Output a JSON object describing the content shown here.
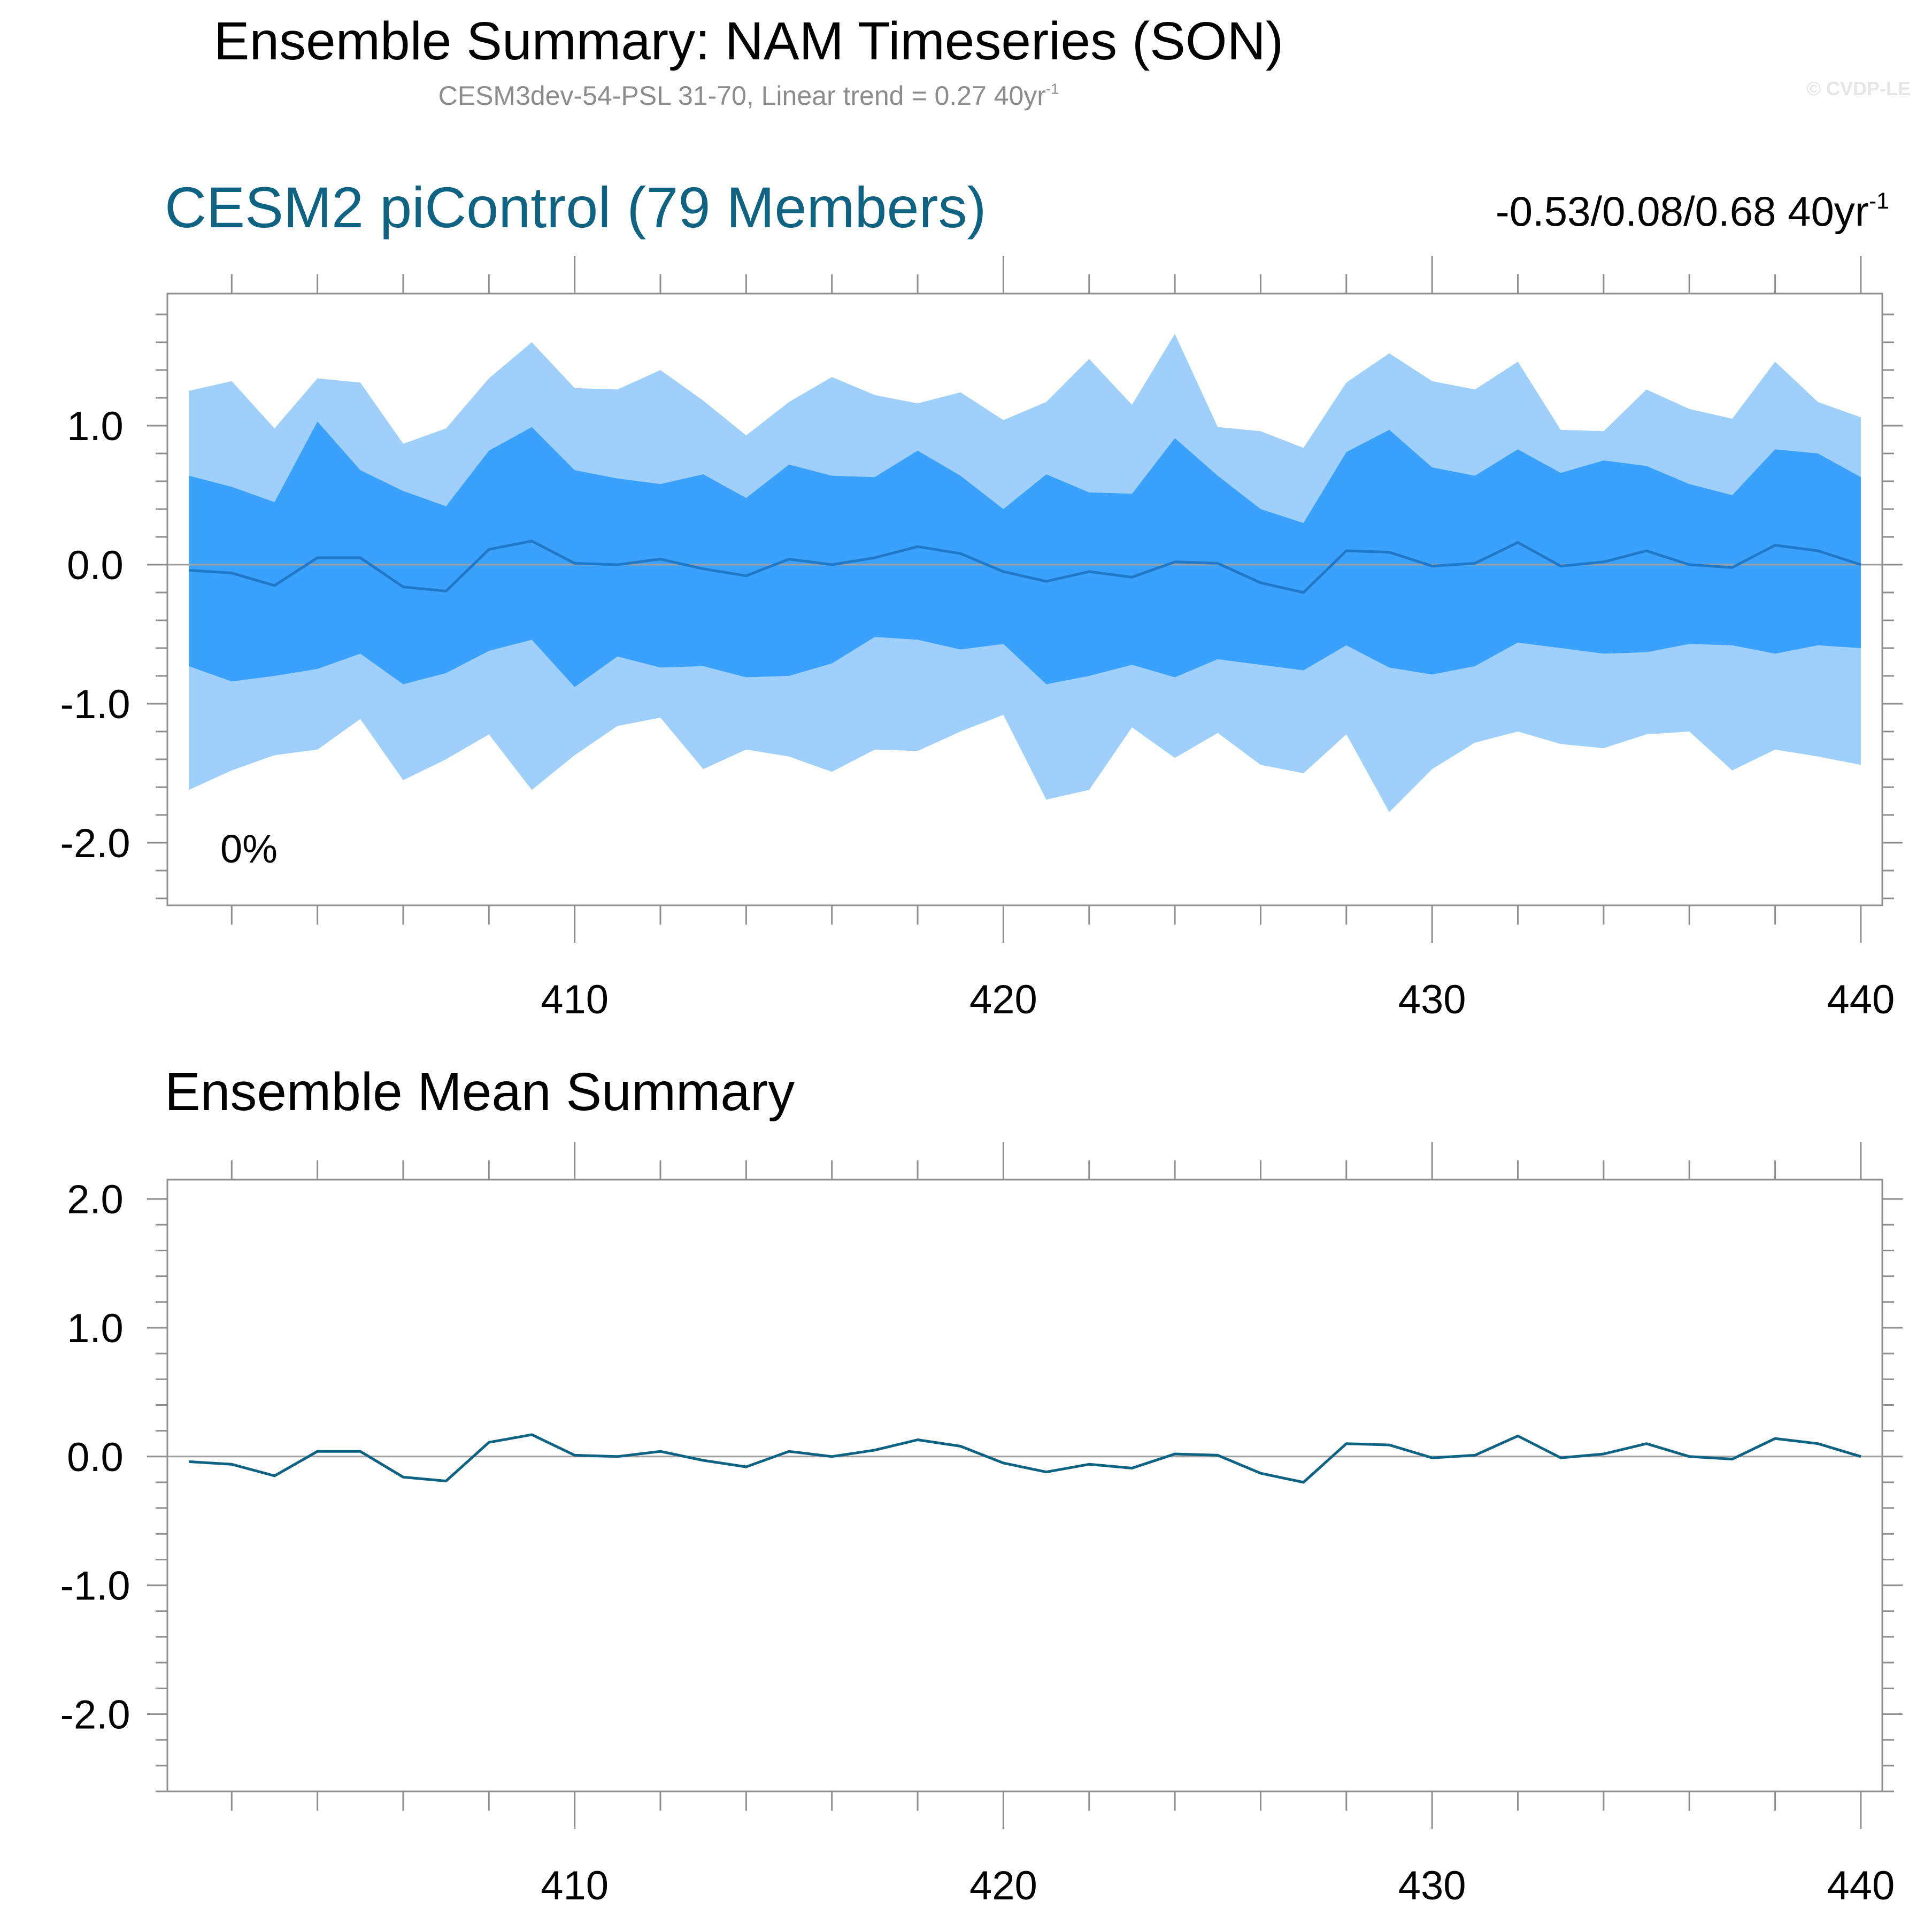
{
  "title": "Ensemble Summary: NAM Timeseries (SON)",
  "subtitle": {
    "text": "CESM3dev-54-PSL 31-70, Linear trend = 0.27 40yr",
    "superscript": "-1"
  },
  "credit": "© CVDP-LE",
  "colors": {
    "band_outer": "#9fd0fc",
    "band_inner": "#3aa2fc",
    "median_line": "#1f78c8",
    "mean_line": "#0e6383",
    "zero_line": "#a0a0a0",
    "axis": "#8f8f8f",
    "title_blue": "#0e6383"
  },
  "chart_data": [
    {
      "type": "area",
      "title": "CESM2 piControl (79 Members)",
      "right_label": {
        "text": "-0.53/0.08/0.68 40yr",
        "superscript": "-1"
      },
      "annotation": "0%",
      "ylim": [
        -2.45,
        1.95
      ],
      "xlim": [
        400.5,
        440.5
      ],
      "yticks": [
        -2.0,
        -1.0,
        0.0,
        1.0
      ],
      "ytick_labels": [
        "-2.0",
        "-1.0",
        "0.0",
        "1.0"
      ],
      "xticks": [
        410,
        420,
        430,
        440
      ],
      "xtick_labels": [
        "410",
        "420",
        "430",
        "440"
      ],
      "x": [
        401,
        402,
        403,
        404,
        405,
        406,
        407,
        408,
        409,
        410,
        411,
        412,
        413,
        414,
        415,
        416,
        417,
        418,
        419,
        420,
        421,
        422,
        423,
        424,
        425,
        426,
        427,
        428,
        429,
        430,
        431,
        432,
        433,
        434,
        435,
        436,
        437,
        438,
        439,
        440
      ],
      "series": [
        {
          "role": "outer_max",
          "values": [
            1.25,
            1.32,
            0.98,
            1.34,
            1.31,
            0.87,
            0.98,
            1.34,
            1.6,
            1.27,
            1.26,
            1.4,
            1.18,
            0.93,
            1.17,
            1.35,
            1.22,
            1.16,
            1.24,
            1.04,
            1.17,
            1.48,
            1.15,
            1.66,
            0.99,
            0.96,
            0.84,
            1.31,
            1.52,
            1.32,
            1.26,
            1.46,
            0.97,
            0.96,
            1.26,
            1.12,
            1.05,
            1.46,
            1.17,
            1.06
          ]
        },
        {
          "role": "inner_max",
          "values": [
            0.64,
            0.56,
            0.45,
            1.03,
            0.68,
            0.53,
            0.42,
            0.82,
            0.99,
            0.68,
            0.62,
            0.58,
            0.65,
            0.48,
            0.72,
            0.64,
            0.63,
            0.82,
            0.64,
            0.4,
            0.65,
            0.52,
            0.51,
            0.91,
            0.64,
            0.4,
            0.3,
            0.81,
            0.97,
            0.7,
            0.64,
            0.83,
            0.66,
            0.75,
            0.71,
            0.58,
            0.5,
            0.83,
            0.8,
            0.63
          ]
        },
        {
          "role": "median",
          "values": [
            -0.04,
            -0.06,
            -0.15,
            0.05,
            0.05,
            -0.16,
            -0.19,
            0.11,
            0.17,
            0.01,
            0.0,
            0.04,
            -0.03,
            -0.08,
            0.04,
            0.0,
            0.05,
            0.13,
            0.08,
            -0.05,
            -0.12,
            -0.05,
            -0.09,
            0.02,
            0.01,
            -0.13,
            -0.2,
            0.1,
            0.09,
            -0.01,
            0.01,
            0.16,
            -0.01,
            0.02,
            0.1,
            0.0,
            -0.02,
            0.14,
            0.1,
            0.0
          ]
        },
        {
          "role": "inner_min",
          "values": [
            -0.73,
            -0.84,
            -0.8,
            -0.75,
            -0.64,
            -0.86,
            -0.78,
            -0.62,
            -0.54,
            -0.88,
            -0.66,
            -0.74,
            -0.73,
            -0.81,
            -0.8,
            -0.71,
            -0.52,
            -0.54,
            -0.61,
            -0.57,
            -0.86,
            -0.8,
            -0.72,
            -0.81,
            -0.68,
            -0.72,
            -0.76,
            -0.58,
            -0.74,
            -0.79,
            -0.73,
            -0.56,
            -0.6,
            -0.64,
            -0.63,
            -0.57,
            -0.58,
            -0.64,
            -0.58,
            -0.6
          ]
        },
        {
          "role": "outer_min",
          "values": [
            -1.62,
            -1.48,
            -1.37,
            -1.33,
            -1.11,
            -1.55,
            -1.4,
            -1.22,
            -1.62,
            -1.37,
            -1.16,
            -1.1,
            -1.47,
            -1.33,
            -1.38,
            -1.49,
            -1.33,
            -1.34,
            -1.2,
            -1.08,
            -1.69,
            -1.62,
            -1.17,
            -1.39,
            -1.21,
            -1.44,
            -1.5,
            -1.22,
            -1.78,
            -1.47,
            -1.28,
            -1.2,
            -1.29,
            -1.32,
            -1.22,
            -1.2,
            -1.48,
            -1.33,
            -1.38,
            -1.44
          ]
        }
      ]
    },
    {
      "type": "line",
      "title": "Ensemble Mean Summary",
      "ylim": [
        -2.6,
        2.15
      ],
      "xlim": [
        400.5,
        440.5
      ],
      "yticks": [
        -2.0,
        -1.0,
        0.0,
        1.0,
        2.0
      ],
      "ytick_labels": [
        "-2.0",
        "-1.0",
        "0.0",
        "1.0",
        "2.0"
      ],
      "xticks": [
        410,
        420,
        430,
        440
      ],
      "xtick_labels": [
        "410",
        "420",
        "430",
        "440"
      ],
      "x": [
        401,
        402,
        403,
        404,
        405,
        406,
        407,
        408,
        409,
        410,
        411,
        412,
        413,
        414,
        415,
        416,
        417,
        418,
        419,
        420,
        421,
        422,
        423,
        424,
        425,
        426,
        427,
        428,
        429,
        430,
        431,
        432,
        433,
        434,
        435,
        436,
        437,
        438,
        439,
        440
      ],
      "series": [
        {
          "role": "ensemble_mean",
          "values": [
            -0.04,
            -0.06,
            -0.15,
            0.04,
            0.04,
            -0.16,
            -0.19,
            0.11,
            0.17,
            0.01,
            0.0,
            0.04,
            -0.03,
            -0.08,
            0.04,
            0.0,
            0.05,
            0.13,
            0.08,
            -0.05,
            -0.12,
            -0.06,
            -0.09,
            0.02,
            0.01,
            -0.13,
            -0.2,
            0.1,
            0.09,
            -0.01,
            0.01,
            0.16,
            -0.01,
            0.02,
            0.1,
            0.0,
            -0.02,
            0.14,
            0.1,
            0.0
          ]
        }
      ]
    }
  ]
}
